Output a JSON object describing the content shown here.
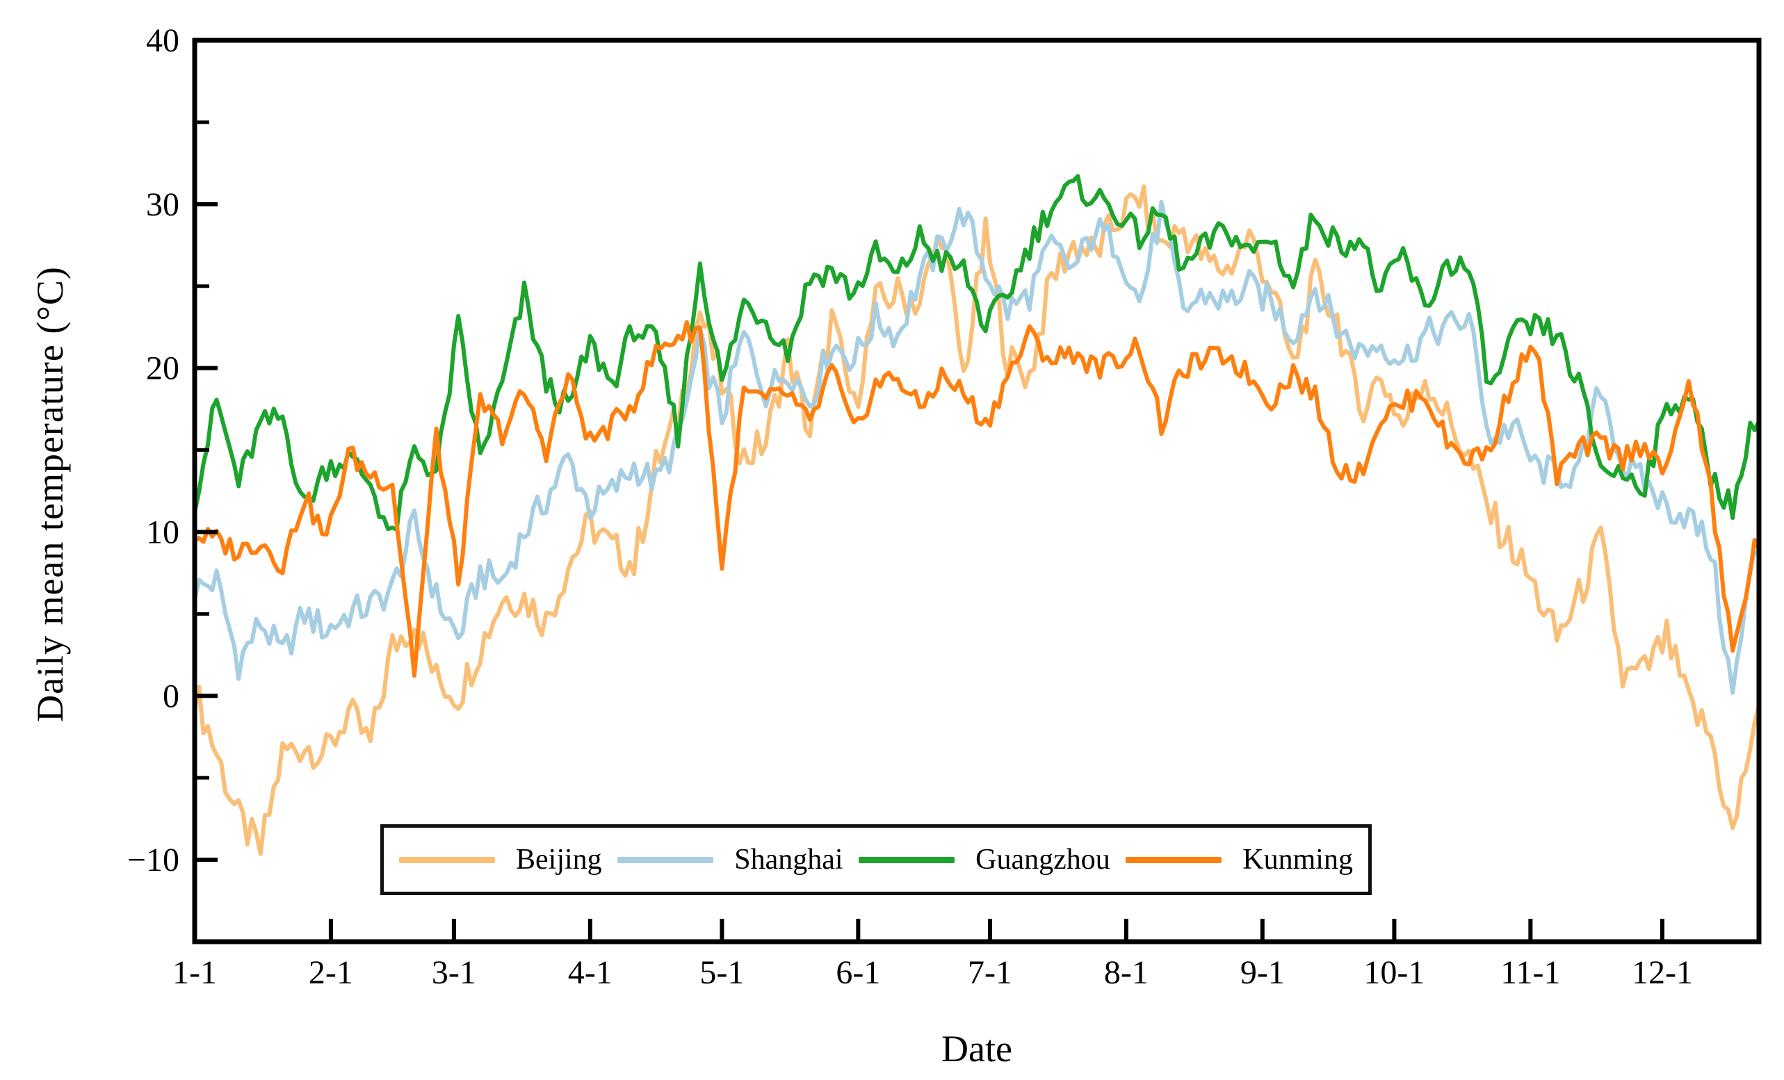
{
  "axes": {
    "xlabel": "Date",
    "ylabel": "Daily mean temperature (°C)",
    "x_tick_labels": [
      "1-1",
      "2-1",
      "3-1",
      "4-1",
      "5-1",
      "6-1",
      "7-1",
      "8-1",
      "9-1",
      "10-1",
      "11-1",
      "12-1"
    ],
    "y_tick_labels": [
      "40",
      "30",
      "20",
      "10",
      "0",
      "−10"
    ]
  },
  "legend": [
    {
      "label": "Beijing",
      "color": "#FBBE76"
    },
    {
      "label": "Shanghai",
      "color": "#A6CEE3"
    },
    {
      "label": "Guangzhou",
      "color": "#1CA42C"
    },
    {
      "label": "Kunming",
      "color": "#FF7F0E"
    }
  ],
  "chart_data": {
    "type": "line",
    "title": "",
    "xlabel": "Date",
    "ylabel": "Daily mean temperature (°C)",
    "x_unit": "day_of_year",
    "sample_interval_days": 5,
    "x_days": [
      0,
      5,
      10,
      15,
      20,
      25,
      30,
      35,
      40,
      45,
      50,
      55,
      60,
      65,
      70,
      75,
      80,
      85,
      90,
      95,
      100,
      105,
      110,
      115,
      120,
      125,
      130,
      135,
      140,
      145,
      150,
      155,
      160,
      165,
      170,
      175,
      180,
      185,
      190,
      195,
      200,
      205,
      210,
      215,
      220,
      225,
      230,
      235,
      240,
      245,
      250,
      255,
      260,
      265,
      270,
      275,
      280,
      285,
      290,
      295,
      300,
      305,
      310,
      315,
      320,
      325,
      330,
      335,
      340,
      345,
      350,
      355
    ],
    "xlim_days": [
      0,
      356
    ],
    "x_tick_positions_days": [
      0,
      31,
      59,
      90,
      120,
      151,
      181,
      212,
      243,
      273,
      304,
      334
    ],
    "ylim": [
      -15,
      40
    ],
    "y_major_ticks": [
      40,
      30,
      20,
      10,
      0,
      -10
    ],
    "y_minor_ticks": [
      35,
      25,
      15,
      5,
      -5
    ],
    "grid": false,
    "legend_position": "bottom-center-box",
    "series": [
      {
        "name": "Beijing",
        "color": "#FBBE76",
        "values": [
          0.3,
          -3.5,
          -7.5,
          -9.5,
          -3.5,
          -3,
          -3.5,
          -1,
          -3,
          3,
          4.5,
          1,
          0,
          3,
          6,
          6,
          4.5,
          8,
          10.5,
          9,
          8,
          14,
          17,
          23.5,
          19,
          14.5,
          15.5,
          21,
          16,
          23,
          17.5,
          24,
          24.5,
          24,
          28.5,
          19.5,
          28,
          20.5,
          19.5,
          25.5,
          27.5,
          27,
          29,
          30.5,
          27.5,
          28.5,
          26.5,
          26,
          28,
          25,
          20,
          25.5,
          23,
          17.5,
          19.5,
          16.5,
          19.5,
          17,
          14.5,
          11,
          9,
          6.5,
          3.5,
          6,
          9.5,
          1,
          1.5,
          3.5,
          -0.5,
          -2.5,
          -8.5,
          -1.5
        ]
      },
      {
        "name": "Shanghai",
        "color": "#A6CEE3",
        "values": [
          6.5,
          7,
          2,
          4.5,
          2.5,
          5,
          4,
          5,
          5.5,
          6.5,
          10.5,
          6,
          3.5,
          7.5,
          7,
          10,
          12,
          14.5,
          11.5,
          12.5,
          14,
          13,
          15.5,
          21.5,
          17,
          22,
          18.5,
          20,
          18,
          21.5,
          20.5,
          23,
          22,
          25.5,
          27.5,
          29.5,
          26,
          23.5,
          24.5,
          27.5,
          26,
          28.5,
          27.5,
          24,
          29.5,
          23.5,
          24.5,
          24,
          25,
          24,
          22,
          25,
          22.5,
          21,
          21.5,
          20.5,
          22,
          22.5,
          23,
          15.5,
          16.5,
          14,
          13.5,
          13.5,
          19,
          14,
          13,
          11.5,
          11,
          9,
          0,
          9
        ]
      },
      {
        "name": "Guangzhou",
        "color": "#1CA42C",
        "values": [
          12,
          18,
          13,
          16.5,
          17,
          11.5,
          14,
          14.5,
          13,
          9.5,
          15,
          13.5,
          22.5,
          14.5,
          19,
          24.5,
          19,
          17.5,
          21.5,
          19,
          22.5,
          21.5,
          16,
          26.5,
          19,
          24,
          23,
          21,
          25.5,
          26,
          24.5,
          27,
          25.5,
          28,
          26.5,
          26,
          22.5,
          24.5,
          27.5,
          30,
          31,
          30.5,
          29.5,
          28,
          29.5,
          26,
          27.5,
          28.5,
          27,
          28,
          25,
          29.5,
          27.5,
          28,
          24.5,
          27,
          23.5,
          26.5,
          26,
          18.5,
          22,
          22.5,
          22,
          19,
          14,
          13.5,
          13,
          17.5,
          18.5,
          13.5,
          11.5,
          17
        ]
      },
      {
        "name": "Kunming",
        "color": "#FF7F0E",
        "values": [
          9.8,
          9.5,
          8.8,
          9.5,
          8,
          12.2,
          9.5,
          14.8,
          13.5,
          13,
          1.5,
          16,
          7,
          18,
          16,
          18.5,
          15,
          19.5,
          15.5,
          16.5,
          18,
          21,
          22,
          22.5,
          8,
          18.5,
          18,
          18.5,
          16.5,
          20,
          16,
          19,
          19.5,
          17.5,
          19.5,
          18.5,
          16.5,
          19.5,
          22,
          20.5,
          21,
          20,
          20.5,
          21.5,
          16.5,
          20,
          20.5,
          20.8,
          19.5,
          18,
          19.8,
          18.2,
          14,
          13.5,
          17,
          17.8,
          18.5,
          15.5,
          14.5,
          15,
          19.5,
          21.5,
          13.5,
          15,
          15.5,
          14.5,
          15.5,
          13.5,
          19.5,
          12.5,
          2.5,
          9
        ]
      }
    ]
  }
}
